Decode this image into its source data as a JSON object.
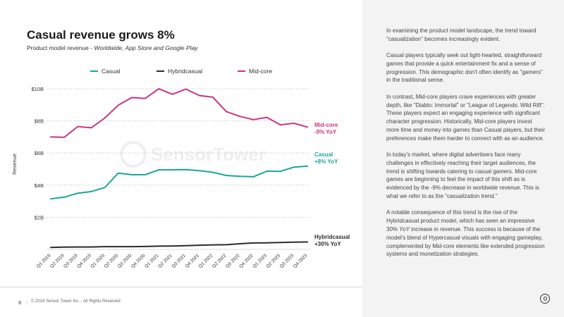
{
  "title": "Casual revenue grows 8%",
  "subtitle_main": "Product model revenue -",
  "subtitle_italic": "Worldwide, App Store and Google Play",
  "legend": [
    {
      "name": "Casual",
      "color": "#1aa893"
    },
    {
      "name": "Hybridcasual",
      "color": "#2b2b2b"
    },
    {
      "name": "Mid-core",
      "color": "#c9357f"
    }
  ],
  "watermark": "SensorTower",
  "end_labels": {
    "midcore": {
      "name": "Mid-core",
      "change": "-9% YoY",
      "color": "#c9357f"
    },
    "casual": {
      "name": "Casual",
      "change": "+8% YoY",
      "color": "#1aa893"
    },
    "hybridcasual": {
      "name": "Hybridcasual",
      "change": "+30% YoY",
      "color": "#2b2b2b"
    }
  },
  "paragraphs": [
    "In examining the product model landscape, the trend toward \"casualization\" becomes increasingly evident.",
    "Casual players typically seek out light-hearted, straightforward games that provide a quick entertainment fix and a sense of progression. This demographic don't often identify as \"gamers\" in the traditional sense.",
    "In contrast, Mid-core players crave experiences with greater depth, like \"Diablo: Immortal\" or \"League of Legends: Wild Rift\". These players expect an engaging experience with significant character progression. Historically, Mid-core players invest more time and money into games than Casual players, but their preferences make them harder to connect with as an audience.",
    "In today's market, where digital advertisers face many challenges in effectively reaching their target audiences, the trend is shifting towards catering to casual gamers. Mid-core games are beginning to feel the impact of this shift as is evidenced by the -9% decrease in worldwide revenue. This is what we refer to as the \"casualization trend.\""
  ],
  "paragraph5": {
    "before": "A notable consequence of this trend is the rise of the Hybridcasual product model, which has seen an impressive 30%",
    "italic": "YoY",
    "after": "increase in revenue. This success is because of the model's blend of Hypercasual visuals with engaging gameplay, complemented by Mid-core elements like extended progression systems and monetization strategies."
  },
  "footer": {
    "page_number": "8",
    "separator": "|",
    "copyright": "© 2024 Sensor Tower Inc. - All Rights Reserved"
  },
  "chart_data": {
    "type": "line",
    "title": "Casual revenue grows 8%",
    "xlabel": "",
    "ylabel": "Revenue",
    "ylim": [
      0,
      10
    ],
    "yticks": [
      2,
      4,
      6,
      8,
      10
    ],
    "ytick_labels": [
      "$2B",
      "$4B",
      "$6B",
      "$8B",
      "$10B"
    ],
    "grid": true,
    "categories": [
      "Q1 2019",
      "Q2 2019",
      "Q3 2019",
      "Q4 2019",
      "Q1 2020",
      "Q2 2020",
      "Q3 2020",
      "Q4 2020",
      "Q1 2021",
      "Q2 2021",
      "Q3 2021",
      "Q4 2021",
      "Q1 2022",
      "Q2 2022",
      "Q3 2022",
      "Q4 2022",
      "Q1 2023",
      "Q2 2023",
      "Q3 2023",
      "Q4 2023"
    ],
    "series": [
      {
        "name": "Casual",
        "color": "#1aa893",
        "values": [
          3.15,
          3.25,
          3.5,
          3.6,
          3.85,
          4.75,
          4.65,
          4.65,
          4.95,
          4.95,
          4.97,
          4.9,
          4.8,
          4.6,
          4.55,
          4.52,
          4.87,
          4.86,
          5.12,
          5.18
        ]
      },
      {
        "name": "Hybridcasual",
        "color": "#2b2b2b",
        "values": [
          0.12,
          0.14,
          0.15,
          0.15,
          0.17,
          0.17,
          0.17,
          0.18,
          0.2,
          0.21,
          0.23,
          0.26,
          0.28,
          0.29,
          0.35,
          0.4,
          0.41,
          0.43,
          0.45,
          0.46
        ]
      },
      {
        "name": "Mid-core",
        "color": "#c9357f",
        "values": [
          7.0,
          6.98,
          7.65,
          7.57,
          8.18,
          8.98,
          9.45,
          9.4,
          10.0,
          9.66,
          9.98,
          9.58,
          9.48,
          8.58,
          8.28,
          8.08,
          8.22,
          7.75,
          7.85,
          7.62
        ]
      }
    ]
  }
}
